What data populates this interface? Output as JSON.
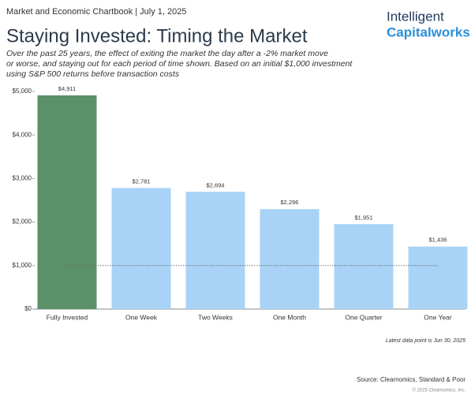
{
  "chart_data": {
    "type": "bar",
    "header": "Market and Economic Chartbook | July 1, 2025",
    "logo": [
      "Intelligent",
      "Capitalworks"
    ],
    "title": "Staying Invested: Timing the Market",
    "subtitle": [
      "Over the past 25 years, the effect of exiting the market the day after a -2% market move",
      "or worse, and staying out for each period of time shown. Based on an initial $1,000 investment",
      "using S&P 500 returns before transaction costs"
    ],
    "categories": [
      "Fully Invested",
      "One Week",
      "Two Weeks",
      "One Month",
      "One Quarter",
      "One Year"
    ],
    "values": [
      4911,
      2781,
      2694,
      2296,
      1951,
      1436
    ],
    "value_labels": [
      "$4,911",
      "$2,781",
      "$2,694",
      "$2,296",
      "$1,951",
      "$1,436"
    ],
    "colors": [
      "#5b9169",
      "#a8d3f7",
      "#a8d3f7",
      "#a8d3f7",
      "#a8d3f7",
      "#a8d3f7"
    ],
    "ylim": [
      0,
      5000
    ],
    "yticks": [
      {
        "value": 0,
        "label": "$0"
      },
      {
        "value": 1000,
        "label": "$1,000"
      },
      {
        "value": 2000,
        "label": "$2,000"
      },
      {
        "value": 3000,
        "label": "$3,000"
      },
      {
        "value": 4000,
        "label": "$4,000"
      },
      {
        "value": 5000,
        "label": "$5,000"
      }
    ],
    "reference_line": 1000,
    "note": "Latest data point is Jun 30, 2025",
    "source": "Source: Clearnomics, Standard & Poor",
    "copyright": "© 2025 Clearnomics, Inc."
  }
}
